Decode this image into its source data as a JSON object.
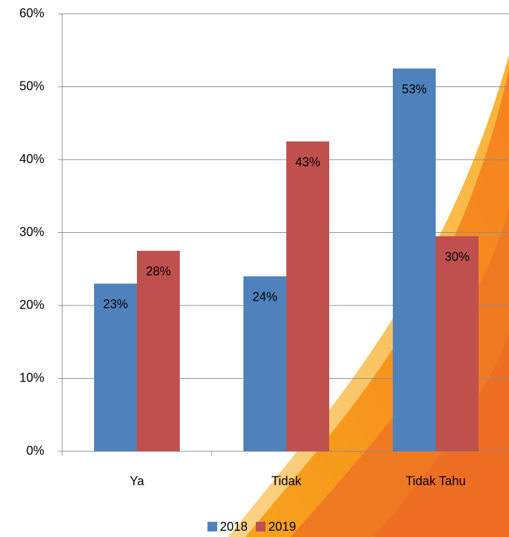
{
  "chart_data": {
    "type": "bar",
    "categories": [
      "Ya",
      "Tidak",
      "Tidak Tahu"
    ],
    "series": [
      {
        "name": "2018",
        "color": "#4f81bd",
        "values": [
          23,
          24,
          52.5
        ],
        "value_labels": [
          "23%",
          "24%",
          "53%"
        ]
      },
      {
        "name": "2019",
        "color": "#c0504d",
        "values": [
          27.5,
          42.5,
          29.5
        ],
        "value_labels": [
          "28%",
          "43%",
          "30%"
        ]
      }
    ],
    "ylim": [
      0,
      60
    ],
    "yticks": [
      {
        "value": 0,
        "label": "0%"
      },
      {
        "value": 10,
        "label": "10%"
      },
      {
        "value": 20,
        "label": "20%"
      },
      {
        "value": 30,
        "label": "30%"
      },
      {
        "value": 40,
        "label": "40%"
      },
      {
        "value": 50,
        "label": "50%"
      },
      {
        "value": 60,
        "label": "60%"
      }
    ],
    "grid": true,
    "legend": "bottom"
  }
}
